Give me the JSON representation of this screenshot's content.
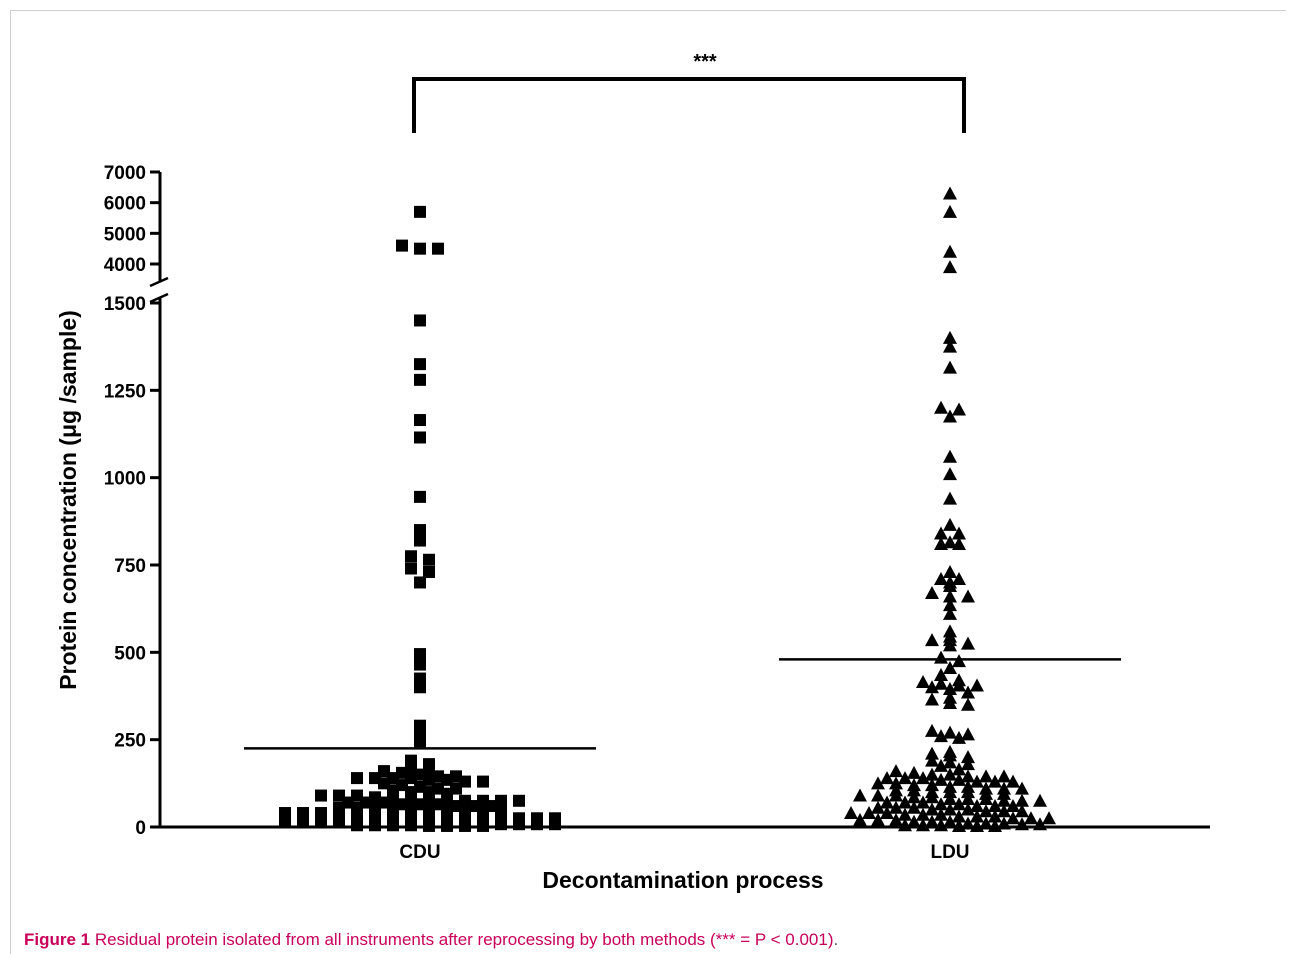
{
  "caption": {
    "label": "Figure 1",
    "text": "Residual protein isolated from all instruments after reprocessing by both methods (*** = P < 0.001)",
    "end": "."
  },
  "chart_data": {
    "type": "scatter",
    "xlabel": "Decontamination process",
    "ylabel": "Protein concentration (μg /sample)",
    "categories": [
      "CDU",
      "LDU"
    ],
    "y_axis": {
      "broken": true,
      "lower_segment": {
        "range": [
          0,
          1500
        ],
        "ticks": [
          0,
          250,
          500,
          750,
          1000,
          1250,
          1500
        ]
      },
      "upper_segment": {
        "range": [
          3500,
          7000
        ],
        "ticks": [
          4000,
          5000,
          6000,
          7000
        ]
      }
    },
    "significance": {
      "label": "***",
      "between": [
        "CDU",
        "LDU"
      ]
    },
    "colors": {
      "points": "#000000",
      "axes": "#000000"
    },
    "series": [
      {
        "category": "CDU",
        "marker": "square",
        "mean": 225,
        "values": [
          5700,
          4600,
          4500,
          4500,
          1450,
          1325,
          1280,
          1165,
          1115,
          945,
          850,
          820,
          775,
          765,
          740,
          730,
          700,
          495,
          475,
          465,
          425,
          400,
          290,
          265,
          245,
          190,
          180,
          170,
          165,
          160,
          155,
          150,
          145,
          145,
          140,
          140,
          140,
          140,
          135,
          135,
          130,
          130,
          125,
          120,
          115,
          110,
          110,
          105,
          100,
          100,
          95,
          90,
          90,
          90,
          85,
          80,
          80,
          80,
          75,
          75,
          75,
          75,
          75,
          70,
          70,
          70,
          65,
          65,
          65,
          60,
          60,
          60,
          55,
          55,
          55,
          50,
          50,
          50,
          45,
          45,
          45,
          45,
          40,
          40,
          40,
          40,
          35,
          35,
          35,
          35,
          30,
          30,
          30,
          30,
          25,
          25,
          25,
          25,
          20,
          20,
          20,
          20,
          15,
          15,
          15,
          15,
          10,
          10,
          10,
          10,
          8,
          8,
          8,
          8,
          5,
          5,
          5,
          5,
          3,
          3,
          3,
          3
        ]
      },
      {
        "category": "LDU",
        "marker": "triangle",
        "mean": 480,
        "values": [
          6300,
          5700,
          4400,
          3900,
          1400,
          1375,
          1315,
          1200,
          1195,
          1175,
          1060,
          1010,
          940,
          865,
          840,
          840,
          815,
          810,
          810,
          730,
          710,
          710,
          700,
          690,
          670,
          660,
          660,
          635,
          610,
          560,
          545,
          535,
          535,
          525,
          520,
          485,
          475,
          455,
          435,
          420,
          415,
          410,
          405,
          405,
          400,
          395,
          385,
          370,
          365,
          355,
          350,
          275,
          270,
          265,
          260,
          255,
          215,
          210,
          205,
          200,
          190,
          185,
          180,
          175,
          165,
          160,
          155,
          150,
          150,
          145,
          145,
          145,
          140,
          140,
          140,
          135,
          135,
          130,
          130,
          130,
          125,
          125,
          120,
          120,
          115,
          115,
          110,
          110,
          110,
          105,
          105,
          100,
          100,
          100,
          95,
          95,
          90,
          90,
          90,
          85,
          85,
          80,
          80,
          80,
          75,
          75,
          75,
          70,
          70,
          70,
          65,
          65,
          60,
          60,
          60,
          55,
          55,
          55,
          50,
          50,
          50,
          45,
          45,
          45,
          40,
          40,
          40,
          35,
          35,
          35,
          30,
          30,
          30,
          25,
          25,
          25,
          20,
          20,
          20,
          15,
          15,
          15,
          10,
          10,
          10,
          8,
          8,
          5,
          5,
          5,
          3,
          3,
          3
        ]
      }
    ]
  }
}
